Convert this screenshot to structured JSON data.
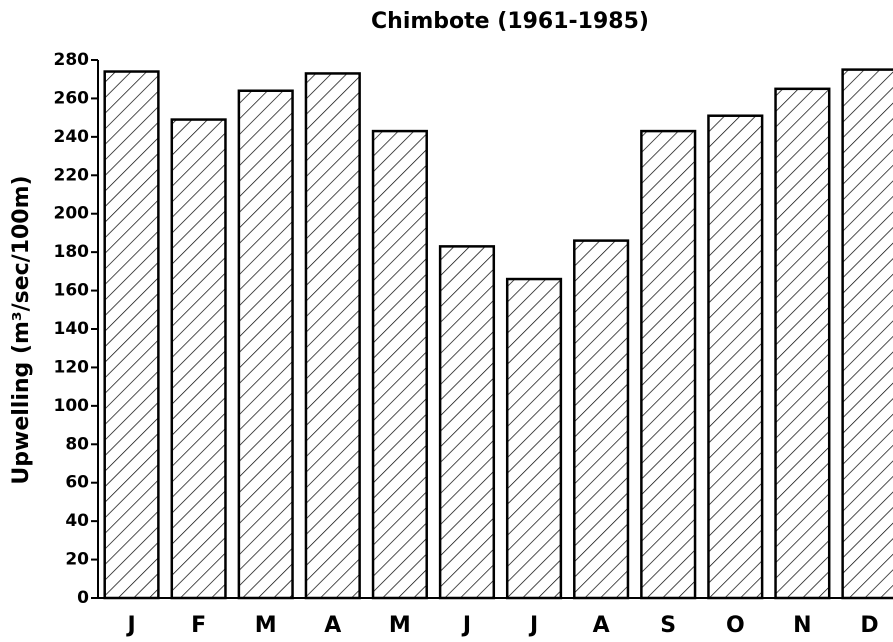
{
  "chart_data": {
    "type": "bar",
    "title": "Chimbote (1961-1985)",
    "y_label": "Upwelling (m³/sec/100m)",
    "categories": [
      "J",
      "F",
      "M",
      "A",
      "M",
      "J",
      "J",
      "A",
      "S",
      "O",
      "N",
      "D"
    ],
    "values": [
      274,
      249,
      264,
      273,
      243,
      183,
      166,
      186,
      243,
      251,
      265,
      275
    ],
    "color": "#000000",
    "ylim": [
      0,
      280
    ],
    "yticks": [
      0,
      20,
      40,
      60,
      80,
      100,
      120,
      140,
      160,
      180,
      200,
      220,
      240,
      260,
      280
    ],
    "grid": false
  }
}
